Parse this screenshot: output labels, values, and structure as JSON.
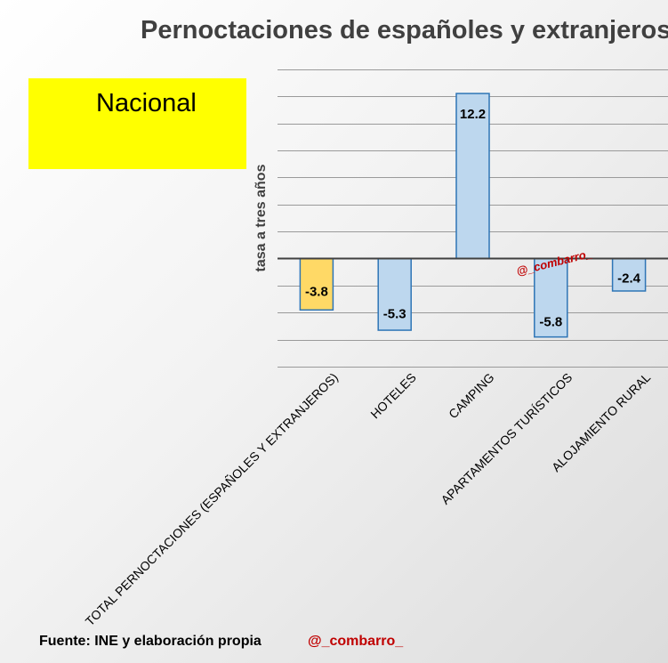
{
  "title": "Pernoctaciones de españoles y extranjeros",
  "badge": "Nacional",
  "footer": {
    "source": "Fuente: INE  y elaboración propia",
    "handle": "@_combarro_"
  },
  "watermark": "@_combarro_",
  "colors": {
    "badge_bg": "#ffff00",
    "total_fill": "#ffd966",
    "total_stroke": "#2e75b6",
    "bar_fill": "#bdd7ee",
    "bar_stroke": "#2e75b6",
    "handle": "#c00000",
    "title": "#404040"
  },
  "chart_data": {
    "type": "bar",
    "title": "Pernoctaciones de españoles y extranjeros",
    "ylabel": "tasa a tres años",
    "xlabel": "",
    "categories": [
      "TOTAL PERNOCTACIONES (ESPAÑOLES Y EXTRANJEROS)",
      "HOTELES",
      "CAMPING",
      "APARTAMENTOS TURÍSTICOS",
      "ALOJAMIENTO RURAL"
    ],
    "values": [
      -3.8,
      -5.3,
      12.2,
      -5.8,
      -2.4
    ],
    "data_labels": [
      "-3.8",
      "-5.3",
      "12.2",
      "-5.8",
      "-2.4"
    ],
    "ylim": [
      -8,
      14
    ],
    "grid": true,
    "highlight_index": 0
  }
}
